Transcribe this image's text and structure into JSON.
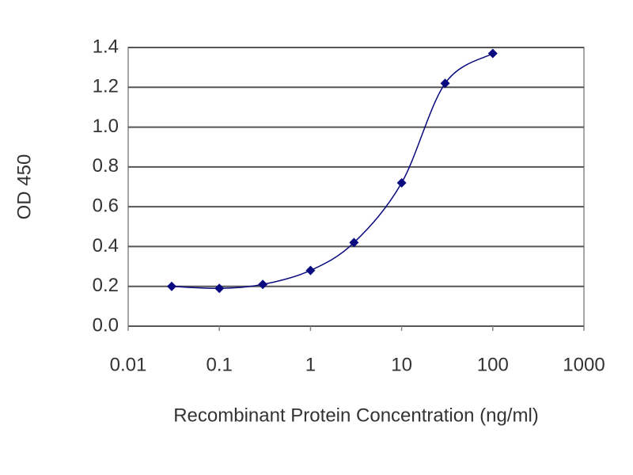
{
  "chart_data": {
    "type": "line",
    "x_label": "Recombinant Protein Concentration (ng/ml)",
    "y_label": "OD 450",
    "x": [
      0.03,
      0.1,
      0.3,
      1,
      3,
      10,
      30,
      100
    ],
    "values": [
      0.2,
      0.19,
      0.21,
      0.28,
      0.42,
      0.72,
      1.22,
      1.37
    ],
    "color": "#0a0a80",
    "x_scale": "log",
    "xlim": [
      0.01,
      1000
    ],
    "xticks": [
      0.01,
      0.1,
      1,
      10,
      100,
      1000
    ],
    "ylim": [
      0,
      1.4
    ],
    "yticks": [
      {
        "value": 0,
        "label": "0.0"
      },
      0.2,
      0.4,
      0.6,
      0.8,
      {
        "value": 1,
        "label": "1.0"
      },
      1.2,
      1.4
    ],
    "grid": true
  }
}
